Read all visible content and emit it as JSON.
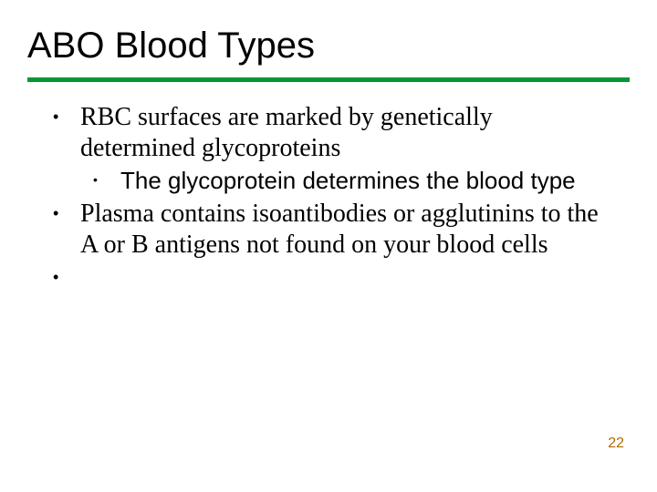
{
  "title": "ABO Blood Types",
  "rule_color": "#009933",
  "bullets": {
    "item1": "RBC surfaces are marked by genetically determined glycoproteins",
    "item1_sub1": "The glycoprotein determines the blood type",
    "item2": "Plasma contains isoantibodies or agglutinins to the A or B antigens not found on your blood cells",
    "item3": ""
  },
  "page_number": "22",
  "page_number_color": "#b36b00"
}
